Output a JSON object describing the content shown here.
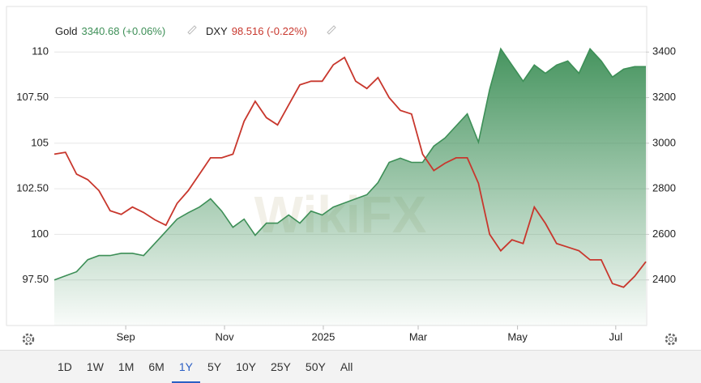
{
  "watermark": "WikiFX",
  "range_buttons": {
    "options": [
      "1D",
      "1W",
      "1M",
      "6M",
      "1Y",
      "5Y",
      "10Y",
      "25Y",
      "50Y",
      "All"
    ],
    "active_index": 4
  },
  "chart_data": {
    "type": "line",
    "xlim": [
      0,
      53
    ],
    "xticks": [
      {
        "value": 6.4,
        "label": "Sep"
      },
      {
        "value": 15.25,
        "label": "Nov"
      },
      {
        "value": 24.1,
        "label": "2025"
      },
      {
        "value": 32.6,
        "label": "Mar"
      },
      {
        "value": 41.5,
        "label": "May"
      },
      {
        "value": 50.3,
        "label": "Jul"
      }
    ],
    "ylim": [
      95,
      112.5
    ],
    "yticks": [
      {
        "value": 97.5,
        "label": "97.50"
      },
      100,
      {
        "value": 102.5,
        "label": "102.50"
      },
      105,
      {
        "value": 107.5,
        "label": "107.50"
      },
      110
    ],
    "y2lim": [
      2200,
      3600
    ],
    "y2ticks": [
      2400,
      2600,
      2800,
      3000,
      3200,
      3400
    ],
    "grid": true,
    "series": [
      {
        "name": "Gold",
        "legend_value": "3340.68 (+0.06%)",
        "type": "area",
        "axis": "y2",
        "color": "#3d8f57",
        "values": [
          2400,
          2418,
          2436,
          2489,
          2507,
          2507,
          2517,
          2517,
          2507,
          2560,
          2613,
          2667,
          2695,
          2720,
          2756,
          2702,
          2631,
          2667,
          2596,
          2649,
          2649,
          2685,
          2649,
          2702,
          2685,
          2720,
          2738,
          2756,
          2774,
          2827,
          2916,
          2934,
          2916,
          2916,
          2987,
          3023,
          3076,
          3129,
          3005,
          3236,
          3414,
          3343,
          3272,
          3343,
          3307,
          3343,
          3361,
          3307,
          3414,
          3361,
          3290,
          3325,
          3336,
          3336
        ]
      },
      {
        "name": "DXY",
        "legend_value": "98.516 (-0.22%)",
        "type": "line",
        "axis": "y",
        "color": "#c8372d",
        "values": [
          104.4,
          104.5,
          103.3,
          103.0,
          102.4,
          101.3,
          101.1,
          101.5,
          101.2,
          100.8,
          100.5,
          101.7,
          102.4,
          103.3,
          104.2,
          104.2,
          104.4,
          106.2,
          107.3,
          106.4,
          106.0,
          107.1,
          108.2,
          108.4,
          108.4,
          109.3,
          109.7,
          108.4,
          108.0,
          108.6,
          107.5,
          106.8,
          106.6,
          104.4,
          103.5,
          103.9,
          104.2,
          104.2,
          102.8,
          100.0,
          99.1,
          99.7,
          99.5,
          101.5,
          100.6,
          99.5,
          99.3,
          99.1,
          98.6,
          98.6,
          97.3,
          97.1,
          97.7,
          98.5
        ]
      }
    ]
  }
}
